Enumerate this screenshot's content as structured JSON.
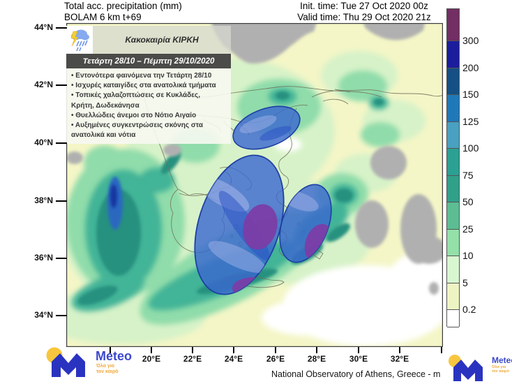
{
  "header": {
    "product_line1": "Total acc. precipitation (mm)",
    "product_line2": "BOLAM 6 km t+69",
    "init_time": "Init. time: Tue 27 Oct 2020 00z",
    "valid_time": "Valid time: Thu 29 Oct 2020 21z"
  },
  "info_box": {
    "storm_icon": "storm-cloud-lightning-icon",
    "title": "Κακοκαιρία ΚΙΡΚΗ",
    "date_range": "Τετάρτη 28/10 – Πέμπτη 29/10/2020",
    "bullet_lines": [
      "• Εντονότερα φαινόμενα την Τετάρτη 28/10",
      "• Ισχυρές καταιγίδες στα ανατολικά τμήματα",
      "• Τοπικές χαλαζοπτώσεις σε Κυκλάδες,",
      "Κρήτη, Δωδεκάνησα",
      "• Θυελλώδεις άνεμοι στο Νότιο Αιγαίο",
      "• Αυξημένες συγκεντρώσεις σκόνης στα",
      "ανατολικά  και νότια"
    ]
  },
  "colorbar": {
    "labels": [
      "300",
      "200",
      "150",
      "125",
      "100",
      "75",
      "50",
      "25",
      "10",
      "5",
      "0.2"
    ],
    "segment_colors_top_to_bottom": [
      "#722f63",
      "#1c1d9c",
      "#145084",
      "#1f78b8",
      "#4aa0c0",
      "#2ba093",
      "#31a089",
      "#5cbd93",
      "#93e0a9",
      "#d8f7d0",
      "#eef3c4",
      "#ffffff"
    ]
  },
  "axes": {
    "lat_labels": [
      "44°N",
      "42°N",
      "40°N",
      "38°N",
      "36°N",
      "34°N"
    ],
    "lon_labels": [
      "20°E",
      "22°E",
      "24°E",
      "26°E",
      "28°E",
      "30°E",
      "32°E"
    ]
  },
  "map_overlay": {
    "highlight_regions": [
      "north-aegean",
      "central-aegean-cyclades-crete",
      "dodecanese"
    ],
    "highlight_color": "#3a67cf",
    "extreme_core_color": "#7b3da6",
    "no_data_color": "#b0b0b0"
  },
  "footer": {
    "attribution": "National Observatory of Athens, Greece - m",
    "logo_name": "Meteo",
    "logo_tagline_line1": "Όλα για",
    "logo_tagline_line2": "τον καιρό"
  }
}
